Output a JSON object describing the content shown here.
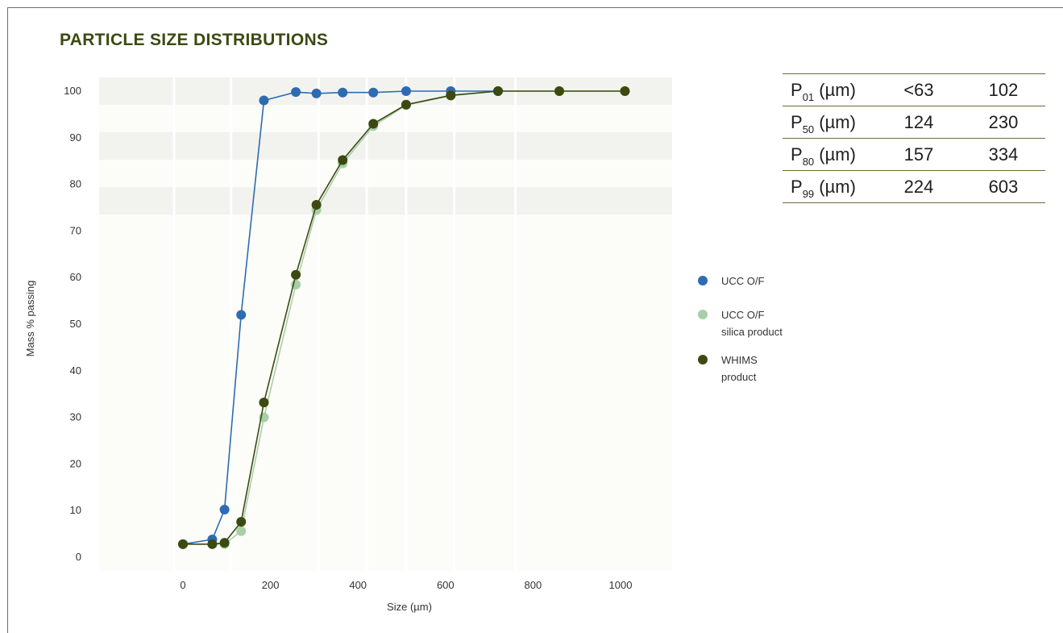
{
  "title": "PARTICLE SIZE DISTRIBUTIONS",
  "colors": {
    "title": "#3c4a12",
    "ucc_of": "#2e6bb3",
    "ucc_silica": "#a8cfa8",
    "whims": "#3c4a12"
  },
  "stats_table": {
    "rows": [
      {
        "label": "P",
        "sub": "01",
        "unit": " (µm)",
        "v1": "<63",
        "v2": "102"
      },
      {
        "label": "P",
        "sub": "50",
        "unit": " (µm)",
        "v1": "124",
        "v2": "230"
      },
      {
        "label": "P",
        "sub": "80",
        "unit": " (µm)",
        "v1": "157",
        "v2": "334"
      },
      {
        "label": "P",
        "sub": "99",
        "unit": " (µm)",
        "v1": "224",
        "v2": "603"
      }
    ]
  },
  "legend": [
    {
      "lines": [
        "UCC O/F"
      ],
      "color": "#2e6bb3",
      "icon": "circle-marker"
    },
    {
      "lines": [
        "UCC O/F",
        "silica product"
      ],
      "color": "#a8cfa8",
      "icon": "circle-marker"
    },
    {
      "lines": [
        "WHIMS",
        "product"
      ],
      "color": "#3c4a12",
      "icon": "circle-marker"
    }
  ],
  "chart_data": {
    "type": "line",
    "title": "PARTICLE SIZE DISTRIBUTIONS",
    "xlabel": "Size (µm)",
    "ylabel": "Mass % passing",
    "xlim": [
      -190,
      1120
    ],
    "ylim": [
      -3,
      103
    ],
    "xticks": [
      0,
      200,
      400,
      600,
      800,
      1000
    ],
    "yticks": [
      0,
      10,
      20,
      30,
      40,
      50,
      60,
      70,
      80,
      90,
      100
    ],
    "grid": true,
    "legend_position": "right",
    "series": [
      {
        "name": "UCC O/F",
        "color": "#2e6bb3",
        "x": [
          0,
          67,
          95,
          133,
          185,
          258,
          305,
          365,
          435,
          510,
          612,
          720
        ],
        "y": [
          2.8,
          3.8,
          10.2,
          52,
          98,
          99.8,
          99.5,
          99.7,
          99.7,
          100,
          100,
          100
        ]
      },
      {
        "name": "UCC O/F silica product",
        "color": "#a8cfa8",
        "x": [
          0,
          67,
          95,
          133,
          185,
          258,
          305,
          365,
          435,
          510,
          612,
          720,
          860,
          1010
        ],
        "y": [
          2.8,
          2.8,
          2.8,
          5.6,
          30,
          58.5,
          74.5,
          84.5,
          92.5,
          97,
          99,
          100,
          100,
          100
        ]
      },
      {
        "name": "WHIMS product",
        "color": "#3c4a12",
        "x": [
          0,
          67,
          95,
          133,
          185,
          258,
          305,
          365,
          435,
          510,
          612,
          720,
          860,
          1010
        ],
        "y": [
          2.8,
          2.8,
          3.1,
          7.6,
          33.2,
          60.6,
          75.6,
          85.2,
          93,
          97.1,
          99.1,
          100,
          100,
          100
        ]
      }
    ]
  }
}
